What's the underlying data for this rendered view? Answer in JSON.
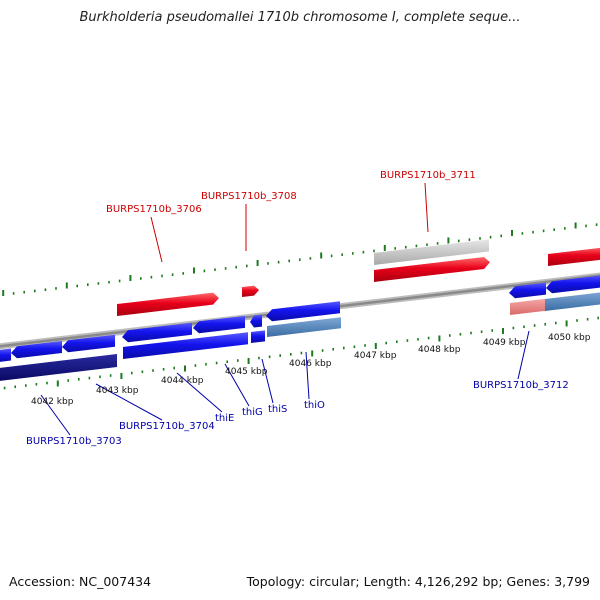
{
  "title": "Burkholderia pseudomallei 1710b chromosome I, complete seque...",
  "footer": {
    "accession": "Accession: NC_007434",
    "summary": "Topology: circular; Length: 4,126,292 bp; Genes: 3,799"
  },
  "ticks": [
    "4042 kbp",
    "4043 kbp",
    "4044 kbp",
    "4045 kbp",
    "4046 kbp",
    "4047 kbp",
    "4048 kbp",
    "4049 kbp",
    "4050 kbp"
  ],
  "forward_labels": [
    "BURPS1710b_3706",
    "BURPS1710b_3708",
    "BURPS1710b_3711"
  ],
  "reverse_labels": [
    "BURPS1710b_3703",
    "BURPS1710b_3704",
    "thiE",
    "thiG",
    "thiS",
    "thiO",
    "BURPS1710b_3712"
  ],
  "colors": {
    "forward_gene": "#e3001a",
    "forward_label": "#cc0000",
    "reverse_gene": "#1a1aee",
    "reverse_label": "#0000aa",
    "dark_reverse": "#0a0a7a",
    "steel_blue": "#4a7fb5",
    "grey_feature": "#c4c4c4",
    "pink_feature": "#e98585",
    "track_dots": "#1f7a1f",
    "backbone": "#8a8a8a"
  }
}
